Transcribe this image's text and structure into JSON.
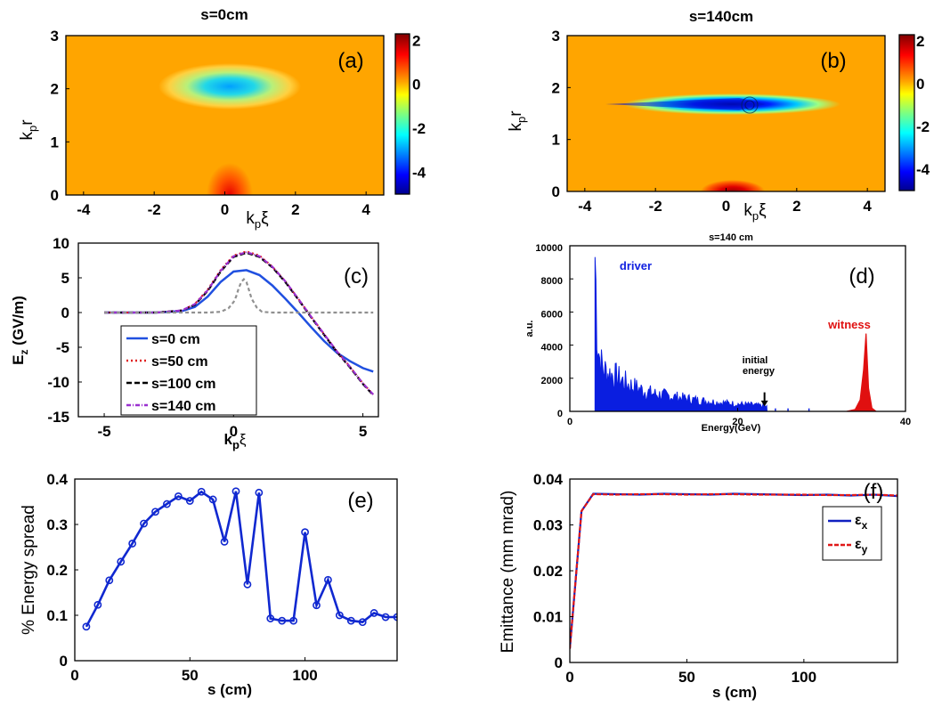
{
  "chart_data": [
    {
      "id": "a",
      "type": "heatmap",
      "title": "s=0cm",
      "panel_label": "(a)",
      "xlabel": "k_pξ",
      "ylabel": "k_pr",
      "xlim": [
        -4.5,
        4.5
      ],
      "ylim": [
        0,
        3
      ],
      "xticks": [
        "-4",
        "-2",
        "0",
        "2",
        "4"
      ],
      "yticks": [
        "0",
        "1",
        "2",
        "3"
      ],
      "colorbar": {
        "range": [
          -5,
          2.3
        ],
        "ticks": [
          "-4",
          "-2",
          "0",
          "2"
        ]
      },
      "features": [
        {
          "name": "blowout-cavity",
          "center": [
            0.2,
            2.0
          ],
          "half_width": [
            2.0,
            0.35
          ],
          "min_value": -3.3
        },
        {
          "name": "drive-beam",
          "center": [
            0.2,
            0.0
          ],
          "half_width": [
            0.6,
            0.45
          ],
          "max_value": 1.6
        }
      ]
    },
    {
      "id": "b",
      "type": "heatmap",
      "title": "s=140cm",
      "panel_label": "(b)",
      "xlabel": "k_pξ",
      "ylabel": "k_pr",
      "xlim": [
        -4.5,
        4.5
      ],
      "ylim": [
        0,
        3
      ],
      "xticks": [
        "-4",
        "-2",
        "0",
        "2",
        "4"
      ],
      "yticks": [
        "0",
        "1",
        "2",
        "3"
      ],
      "colorbar": {
        "range": [
          -5,
          2.3
        ],
        "ticks": [
          "-4",
          "-2",
          "0",
          "2"
        ]
      },
      "features": [
        {
          "name": "blowout-cavity",
          "center": [
            0.5,
            1.7
          ],
          "half_width": [
            3.0,
            0.2
          ],
          "min_value": -5.0
        },
        {
          "name": "drive-beam",
          "center": [
            0.5,
            0.0
          ],
          "half_width": [
            0.9,
            0.3
          ],
          "max_value": 2.0
        }
      ]
    },
    {
      "id": "c",
      "type": "line",
      "panel_label": "(c)",
      "xlabel": "k_pξ",
      "ylabel": "E_z (GV/m)",
      "xlim": [
        -6,
        5.6
      ],
      "ylim": [
        -15,
        10
      ],
      "xticks": [
        "-5",
        "0",
        "5"
      ],
      "yticks": [
        "-15",
        "-10",
        "-5",
        "0",
        "5",
        "10"
      ],
      "series": [
        {
          "name": "s=0 cm",
          "color": "#2050e0",
          "dash": "none",
          "x": [
            -5,
            -3,
            -2,
            -1.5,
            -1,
            -0.5,
            0,
            0.5,
            1,
            1.5,
            2,
            2.5,
            3,
            3.5,
            4,
            4.5,
            5,
            5.4
          ],
          "y": [
            0,
            0,
            0.2,
            0.8,
            2.3,
            4.4,
            5.9,
            6.1,
            5.4,
            3.9,
            2,
            0,
            -2.1,
            -4.1,
            -5.8,
            -7,
            -8,
            -8.5
          ]
        },
        {
          "name": "s=50 cm",
          "color": "#e02020",
          "dash": "2,3",
          "x": [
            -5,
            -3,
            -2,
            -1.5,
            -1,
            -0.5,
            0,
            0.5,
            1,
            1.5,
            2,
            2.5,
            3,
            3.5,
            4,
            4.5,
            5,
            5.4
          ],
          "y": [
            0,
            0,
            0.3,
            1.2,
            3.3,
            6.1,
            8.2,
            8.8,
            8.2,
            6.6,
            4.5,
            2,
            -0.6,
            -3.1,
            -5.6,
            -7.8,
            -10.2,
            -11.8
          ]
        },
        {
          "name": "s=100 cm",
          "color": "#000000",
          "dash": "6,3",
          "x": [
            -5,
            -3,
            -2,
            -1.5,
            -1,
            -0.5,
            0,
            0.5,
            1,
            1.5,
            2,
            2.5,
            3,
            3.5,
            4,
            4.5,
            5,
            5.4
          ],
          "y": [
            0,
            0,
            0.3,
            1.1,
            3.1,
            5.9,
            8,
            8.6,
            8,
            6.5,
            4.4,
            1.9,
            -0.7,
            -3.2,
            -5.7,
            -7.9,
            -10.3,
            -11.9
          ]
        },
        {
          "name": "s=140 cm",
          "color": "#9a30d0",
          "dash": "5,2,1,2",
          "x": [
            -5,
            -3,
            -2,
            -1.5,
            -1,
            -0.5,
            0,
            0.5,
            1,
            1.5,
            2,
            2.5,
            3,
            3.5,
            4,
            4.5,
            5,
            5.4
          ],
          "y": [
            0,
            0,
            0.3,
            1.2,
            3.2,
            6,
            8.1,
            8.7,
            8.1,
            6.6,
            4.5,
            2,
            -0.6,
            -3.1,
            -5.6,
            -7.8,
            -10.2,
            -11.8
          ]
        },
        {
          "name": "drive beam profile",
          "color": "#909090",
          "dash": "4,3",
          "legend": false,
          "x": [
            -5,
            -1,
            -0.5,
            -0.2,
            0,
            0.1,
            0.2,
            0.3,
            0.4,
            0.5,
            0.6,
            0.7,
            0.9,
            1.1,
            1.5,
            5.4
          ],
          "y": [
            0,
            0,
            0.1,
            0.6,
            1.5,
            2.3,
            3.5,
            4.4,
            4.8,
            4.4,
            3.2,
            2,
            0.7,
            0.1,
            0,
            0
          ]
        }
      ]
    },
    {
      "id": "d",
      "type": "bar",
      "title": "s=140 cm",
      "panel_label": "(d)",
      "xlabel": "Energy(GeV)",
      "ylabel": "a.u.",
      "xlim": [
        0,
        40
      ],
      "ylim": [
        0,
        10000
      ],
      "xticks": [
        "0",
        "20",
        "40"
      ],
      "yticks": [
        "0",
        "2000",
        "4000",
        "6000",
        "8000",
        "10000"
      ],
      "annotations": {
        "driver": "driver",
        "witness": "witness",
        "initial_energy": [
          "initial",
          "energy"
        ]
      },
      "initial_energy_gev": 23.2,
      "series": [
        {
          "name": "driver",
          "color": "#0a1ee0",
          "x": [
            3,
            3.3,
            3.6,
            4,
            4.5,
            5,
            6,
            7,
            8,
            9,
            10,
            12,
            14,
            16,
            18,
            20,
            22,
            23.5
          ],
          "y": [
            9400,
            4300,
            3000,
            2500,
            2300,
            2200,
            1900,
            1600,
            1400,
            1200,
            1050,
            900,
            750,
            620,
            520,
            440,
            380,
            280
          ]
        },
        {
          "name": "witness",
          "color": "#e01010",
          "x": [
            33,
            34,
            34.6,
            35,
            35.3,
            35.6,
            36,
            36.5
          ],
          "y": [
            0,
            120,
            700,
            2500,
            4700,
            1400,
            200,
            0
          ]
        }
      ]
    },
    {
      "id": "e",
      "type": "line",
      "panel_label": "(e)",
      "xlabel": "s (cm)",
      "ylabel": "% Energy spread",
      "xlim": [
        0,
        140
      ],
      "ylim": [
        0,
        0.4
      ],
      "xticks": [
        "0",
        "50",
        "100"
      ],
      "yticks": [
        "0",
        "0.1",
        "0.2",
        "0.3",
        "0.4"
      ],
      "series": [
        {
          "name": "energy spread",
          "color": "#1028d0",
          "x": [
            5,
            10,
            15,
            20,
            25,
            30,
            35,
            40,
            45,
            50,
            55,
            60,
            65,
            70,
            75,
            80,
            85,
            90,
            95,
            100,
            105,
            110,
            115,
            120,
            125,
            130,
            135,
            140
          ],
          "y": [
            0.075,
            0.123,
            0.177,
            0.218,
            0.258,
            0.302,
            0.328,
            0.345,
            0.362,
            0.352,
            0.372,
            0.355,
            0.262,
            0.373,
            0.168,
            0.37,
            0.093,
            0.088,
            0.088,
            0.283,
            0.122,
            0.178,
            0.1,
            0.088,
            0.085,
            0.105,
            0.096,
            0.096
          ]
        }
      ]
    },
    {
      "id": "f",
      "type": "line",
      "panel_label": "(f)",
      "xlabel": "s (cm)",
      "ylabel": "Emittance (mm mrad)",
      "xlim": [
        0,
        140
      ],
      "ylim": [
        0,
        0.04
      ],
      "xticks": [
        "0",
        "50",
        "100"
      ],
      "yticks": [
        "0",
        "0.01",
        "0.02",
        "0.03",
        "0.04"
      ],
      "series": [
        {
          "name": "ε_x",
          "color": "#1020c0",
          "dash": "none",
          "x": [
            0,
            5,
            10,
            20,
            30,
            40,
            50,
            60,
            70,
            80,
            90,
            100,
            110,
            120,
            130,
            140
          ],
          "y": [
            0.003,
            0.033,
            0.0368,
            0.0367,
            0.0366,
            0.0368,
            0.0367,
            0.0366,
            0.0368,
            0.0367,
            0.0366,
            0.0365,
            0.0366,
            0.0364,
            0.0366,
            0.0363
          ]
        },
        {
          "name": "ε_y",
          "color": "#e01818",
          "dash": "5,2",
          "x": [
            0,
            5,
            10,
            20,
            30,
            40,
            50,
            60,
            70,
            80,
            90,
            100,
            110,
            120,
            130,
            140
          ],
          "y": [
            0.003,
            0.033,
            0.0367,
            0.0366,
            0.0367,
            0.0367,
            0.0366,
            0.0367,
            0.0367,
            0.0366,
            0.0366,
            0.0366,
            0.0365,
            0.0365,
            0.0366,
            0.0364
          ]
        }
      ]
    }
  ]
}
